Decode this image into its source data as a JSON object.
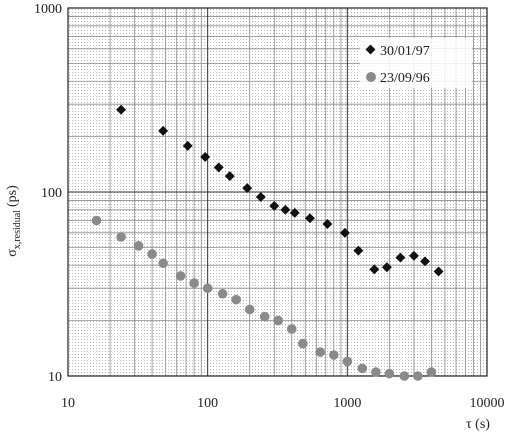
{
  "chart_data": {
    "type": "scatter",
    "title": "",
    "xlabel": "τ (s)",
    "ylabel_main": "σ",
    "ylabel_sub": "x,residual",
    "ylabel_unit": "(ps)",
    "x_scale": "log",
    "y_scale": "log",
    "xlim": [
      10,
      10000
    ],
    "ylim": [
      10,
      1000
    ],
    "x_tick_labels": [
      "10",
      "100",
      "1000",
      "10000"
    ],
    "y_tick_labels": [
      "10",
      "100",
      "1000"
    ],
    "x_ticks": [
      10,
      100,
      1000,
      10000
    ],
    "y_ticks": [
      10,
      100,
      1000
    ],
    "grid": true,
    "legend_position": "top-right",
    "series": [
      {
        "name": "30/01/97",
        "marker": "diamond",
        "color": "#111111",
        "x": [
          24,
          48,
          72,
          96,
          120,
          144,
          192,
          240,
          300,
          360,
          420,
          540,
          720,
          960,
          1200,
          1560,
          1920,
          2400,
          3000,
          3600,
          4500
        ],
        "y": [
          280,
          215,
          178,
          155,
          136,
          122,
          105,
          94,
          84,
          80,
          77,
          72,
          67,
          60,
          48,
          38,
          39,
          44,
          45,
          42,
          37
        ]
      },
      {
        "name": "23/09/96",
        "marker": "circle",
        "color": "#8a8a8a",
        "x": [
          16,
          24,
          32,
          40,
          48,
          64,
          80,
          100,
          128,
          160,
          200,
          256,
          320,
          400,
          480,
          640,
          800,
          1000,
          1280,
          1600,
          2000,
          2560,
          3200,
          4000
        ],
        "y": [
          70,
          57,
          51,
          46,
          41,
          35,
          32,
          30,
          28,
          26,
          23,
          21,
          20,
          18,
          15,
          13.5,
          13,
          12,
          11,
          10.5,
          10.3,
          10,
          10,
          10.5
        ]
      }
    ]
  }
}
